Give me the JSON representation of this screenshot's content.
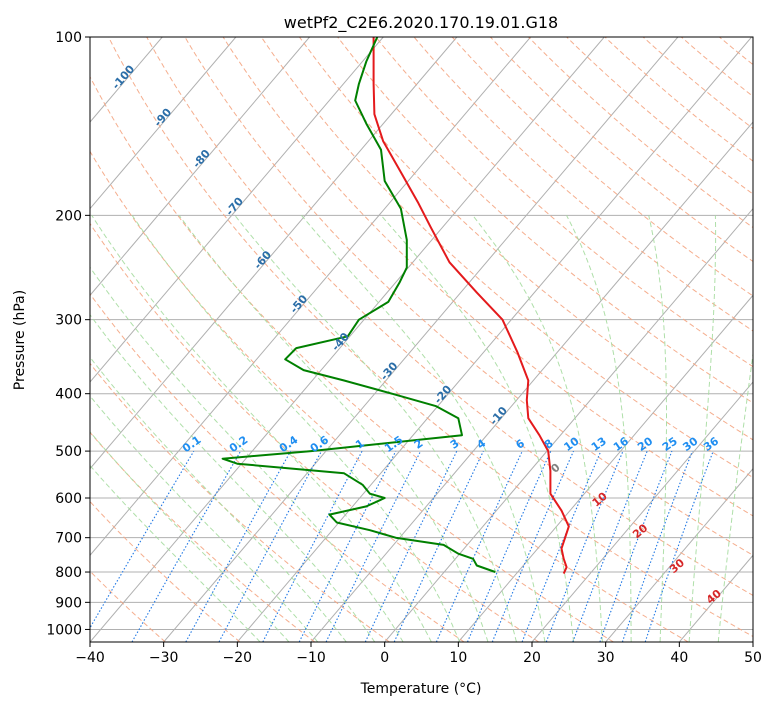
{
  "chart_data": {
    "type": "line",
    "title": "wetPf2_C2E6.2020.170.19.01.G18",
    "xlabel": "Temperature (°C)",
    "ylabel": "Pressure (hPa)",
    "xlim": [
      -40,
      50
    ],
    "ylim": [
      1050,
      100
    ],
    "y_scale": "log",
    "grid": true,
    "x_ticks": [
      -40,
      -30,
      -20,
      -10,
      0,
      10,
      20,
      30,
      40,
      50
    ],
    "y_ticks": [
      100,
      200,
      300,
      400,
      500,
      600,
      700,
      800,
      900,
      1000
    ],
    "series": [
      {
        "color": "#e41a1c",
        "points": [
          {
            "p": 100,
            "t": -1.5
          },
          {
            "p": 120,
            "t": -1.5
          },
          {
            "p": 135,
            "t": -1.4
          },
          {
            "p": 150,
            "t": -0.2
          },
          {
            "p": 170,
            "t": 2.3
          },
          {
            "p": 190,
            "t": 4.5
          },
          {
            "p": 210,
            "t": 6.3
          },
          {
            "p": 240,
            "t": 8.8
          },
          {
            "p": 270,
            "t": 12.5
          },
          {
            "p": 300,
            "t": 16.0
          },
          {
            "p": 340,
            "t": 18.0
          },
          {
            "p": 380,
            "t": 19.5
          },
          {
            "p": 410,
            "t": 19.3
          },
          {
            "p": 440,
            "t": 19.5
          },
          {
            "p": 470,
            "t": 21.0
          },
          {
            "p": 500,
            "t": 22.2
          },
          {
            "p": 540,
            "t": 22.5
          },
          {
            "p": 590,
            "t": 22.5
          },
          {
            "p": 630,
            "t": 24.0
          },
          {
            "p": 670,
            "t": 25.0
          },
          {
            "p": 700,
            "t": 24.5
          },
          {
            "p": 730,
            "t": 24.0
          },
          {
            "p": 760,
            "t": 24.3
          },
          {
            "p": 785,
            "t": 24.7
          },
          {
            "p": 805,
            "t": 24.3
          }
        ]
      },
      {
        "color": "#008000",
        "points": [
          {
            "p": 100,
            "t": -1.0
          },
          {
            "p": 110,
            "t": -2.5
          },
          {
            "p": 120,
            "t": -3.5
          },
          {
            "p": 128,
            "t": -4.0
          },
          {
            "p": 140,
            "t": -2.5
          },
          {
            "p": 155,
            "t": -0.5
          },
          {
            "p": 175,
            "t": 0.0
          },
          {
            "p": 195,
            "t": 2.2
          },
          {
            "p": 220,
            "t": 3.0
          },
          {
            "p": 245,
            "t": 3.0
          },
          {
            "p": 260,
            "t": 2.0
          },
          {
            "p": 280,
            "t": 0.5
          },
          {
            "p": 300,
            "t": -3.5
          },
          {
            "p": 320,
            "t": -5.0
          },
          {
            "p": 335,
            "t": -12.0
          },
          {
            "p": 350,
            "t": -13.5
          },
          {
            "p": 365,
            "t": -11.0
          },
          {
            "p": 380,
            "t": -5.5
          },
          {
            "p": 400,
            "t": 1.0
          },
          {
            "p": 420,
            "t": 7.0
          },
          {
            "p": 440,
            "t": 10.0
          },
          {
            "p": 470,
            "t": 10.5
          },
          {
            "p": 500,
            "t": -10.0
          },
          {
            "p": 515,
            "t": -22.0
          },
          {
            "p": 525,
            "t": -20.0
          },
          {
            "p": 545,
            "t": -5.5
          },
          {
            "p": 570,
            "t": -3.0
          },
          {
            "p": 590,
            "t": -2.0
          },
          {
            "p": 600,
            "t": 0.0
          },
          {
            "p": 620,
            "t": -2.5
          },
          {
            "p": 640,
            "t": -7.5
          },
          {
            "p": 660,
            "t": -6.5
          },
          {
            "p": 680,
            "t": -2.0
          },
          {
            "p": 700,
            "t": 1.5
          },
          {
            "p": 720,
            "t": 8.0
          },
          {
            "p": 745,
            "t": 10.0
          },
          {
            "p": 760,
            "t": 12.0
          },
          {
            "p": 780,
            "t": 12.5
          },
          {
            "p": 800,
            "t": 15.0
          }
        ]
      }
    ],
    "isotherm_labels": [
      "-100",
      "-90",
      "-80",
      "-70",
      "-60",
      "-50",
      "-40",
      "-30",
      "-20",
      "-10"
    ],
    "mixing_ratio_labels": [
      "0.1",
      "0.2",
      "0.4",
      "0.6",
      "1",
      "1.5",
      "2",
      "3",
      "4",
      "6",
      "8",
      "10",
      "13",
      "16",
      "20",
      "25",
      "30",
      "36"
    ],
    "moist_adiabat_labels": [
      "0",
      "10",
      "20",
      "30",
      "40"
    ]
  }
}
